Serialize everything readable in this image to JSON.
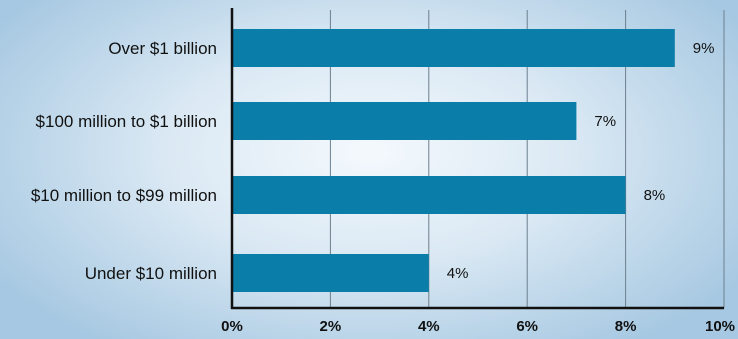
{
  "chart_data": {
    "type": "bar",
    "orientation": "horizontal",
    "categories": [
      "Over $1 billion",
      "$100 million to $1 billion",
      "$10 million to $99 million",
      "Under $10 million"
    ],
    "values": [
      9,
      7,
      8,
      4
    ],
    "value_labels": [
      "9%",
      "7%",
      "8%",
      "4%"
    ],
    "xlim": [
      0,
      10
    ],
    "x_ticks": [
      "0%",
      "2%",
      "4%",
      "6%",
      "8%",
      "10%"
    ],
    "grid": "vertical",
    "bar_color": "#0a7ea8",
    "title": "",
    "xlabel": "",
    "ylabel": ""
  }
}
